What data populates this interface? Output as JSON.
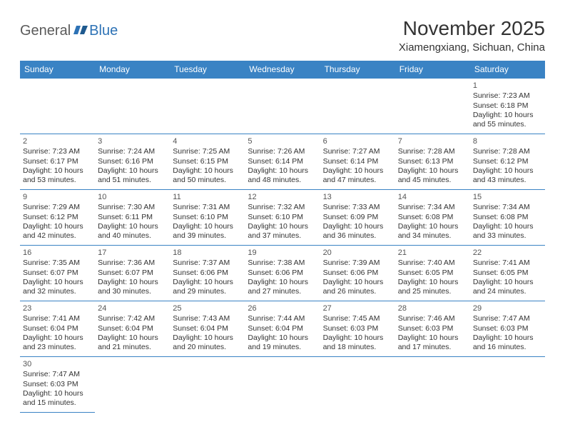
{
  "logo": {
    "part1": "General",
    "part2": "Blue"
  },
  "title": "November 2025",
  "location": "Xiamengxiang, Sichuan, China",
  "colors": {
    "header_bg": "#3a83c4",
    "header_text": "#ffffff",
    "border": "#3a83c4",
    "text": "#333333",
    "logo_gray": "#5a5a5a",
    "logo_blue": "#2d72b5"
  },
  "weekdays": [
    "Sunday",
    "Monday",
    "Tuesday",
    "Wednesday",
    "Thursday",
    "Friday",
    "Saturday"
  ],
  "weeks": [
    [
      {
        "blank": true
      },
      {
        "blank": true
      },
      {
        "blank": true
      },
      {
        "blank": true
      },
      {
        "blank": true
      },
      {
        "blank": true
      },
      {
        "day": "1",
        "sunrise": "Sunrise: 7:23 AM",
        "sunset": "Sunset: 6:18 PM",
        "daylight": "Daylight: 10 hours and 55 minutes."
      }
    ],
    [
      {
        "day": "2",
        "sunrise": "Sunrise: 7:23 AM",
        "sunset": "Sunset: 6:17 PM",
        "daylight": "Daylight: 10 hours and 53 minutes."
      },
      {
        "day": "3",
        "sunrise": "Sunrise: 7:24 AM",
        "sunset": "Sunset: 6:16 PM",
        "daylight": "Daylight: 10 hours and 51 minutes."
      },
      {
        "day": "4",
        "sunrise": "Sunrise: 7:25 AM",
        "sunset": "Sunset: 6:15 PM",
        "daylight": "Daylight: 10 hours and 50 minutes."
      },
      {
        "day": "5",
        "sunrise": "Sunrise: 7:26 AM",
        "sunset": "Sunset: 6:14 PM",
        "daylight": "Daylight: 10 hours and 48 minutes."
      },
      {
        "day": "6",
        "sunrise": "Sunrise: 7:27 AM",
        "sunset": "Sunset: 6:14 PM",
        "daylight": "Daylight: 10 hours and 47 minutes."
      },
      {
        "day": "7",
        "sunrise": "Sunrise: 7:28 AM",
        "sunset": "Sunset: 6:13 PM",
        "daylight": "Daylight: 10 hours and 45 minutes."
      },
      {
        "day": "8",
        "sunrise": "Sunrise: 7:28 AM",
        "sunset": "Sunset: 6:12 PM",
        "daylight": "Daylight: 10 hours and 43 minutes."
      }
    ],
    [
      {
        "day": "9",
        "sunrise": "Sunrise: 7:29 AM",
        "sunset": "Sunset: 6:12 PM",
        "daylight": "Daylight: 10 hours and 42 minutes."
      },
      {
        "day": "10",
        "sunrise": "Sunrise: 7:30 AM",
        "sunset": "Sunset: 6:11 PM",
        "daylight": "Daylight: 10 hours and 40 minutes."
      },
      {
        "day": "11",
        "sunrise": "Sunrise: 7:31 AM",
        "sunset": "Sunset: 6:10 PM",
        "daylight": "Daylight: 10 hours and 39 minutes."
      },
      {
        "day": "12",
        "sunrise": "Sunrise: 7:32 AM",
        "sunset": "Sunset: 6:10 PM",
        "daylight": "Daylight: 10 hours and 37 minutes."
      },
      {
        "day": "13",
        "sunrise": "Sunrise: 7:33 AM",
        "sunset": "Sunset: 6:09 PM",
        "daylight": "Daylight: 10 hours and 36 minutes."
      },
      {
        "day": "14",
        "sunrise": "Sunrise: 7:34 AM",
        "sunset": "Sunset: 6:08 PM",
        "daylight": "Daylight: 10 hours and 34 minutes."
      },
      {
        "day": "15",
        "sunrise": "Sunrise: 7:34 AM",
        "sunset": "Sunset: 6:08 PM",
        "daylight": "Daylight: 10 hours and 33 minutes."
      }
    ],
    [
      {
        "day": "16",
        "sunrise": "Sunrise: 7:35 AM",
        "sunset": "Sunset: 6:07 PM",
        "daylight": "Daylight: 10 hours and 32 minutes."
      },
      {
        "day": "17",
        "sunrise": "Sunrise: 7:36 AM",
        "sunset": "Sunset: 6:07 PM",
        "daylight": "Daylight: 10 hours and 30 minutes."
      },
      {
        "day": "18",
        "sunrise": "Sunrise: 7:37 AM",
        "sunset": "Sunset: 6:06 PM",
        "daylight": "Daylight: 10 hours and 29 minutes."
      },
      {
        "day": "19",
        "sunrise": "Sunrise: 7:38 AM",
        "sunset": "Sunset: 6:06 PM",
        "daylight": "Daylight: 10 hours and 27 minutes."
      },
      {
        "day": "20",
        "sunrise": "Sunrise: 7:39 AM",
        "sunset": "Sunset: 6:06 PM",
        "daylight": "Daylight: 10 hours and 26 minutes."
      },
      {
        "day": "21",
        "sunrise": "Sunrise: 7:40 AM",
        "sunset": "Sunset: 6:05 PM",
        "daylight": "Daylight: 10 hours and 25 minutes."
      },
      {
        "day": "22",
        "sunrise": "Sunrise: 7:41 AM",
        "sunset": "Sunset: 6:05 PM",
        "daylight": "Daylight: 10 hours and 24 minutes."
      }
    ],
    [
      {
        "day": "23",
        "sunrise": "Sunrise: 7:41 AM",
        "sunset": "Sunset: 6:04 PM",
        "daylight": "Daylight: 10 hours and 23 minutes."
      },
      {
        "day": "24",
        "sunrise": "Sunrise: 7:42 AM",
        "sunset": "Sunset: 6:04 PM",
        "daylight": "Daylight: 10 hours and 21 minutes."
      },
      {
        "day": "25",
        "sunrise": "Sunrise: 7:43 AM",
        "sunset": "Sunset: 6:04 PM",
        "daylight": "Daylight: 10 hours and 20 minutes."
      },
      {
        "day": "26",
        "sunrise": "Sunrise: 7:44 AM",
        "sunset": "Sunset: 6:04 PM",
        "daylight": "Daylight: 10 hours and 19 minutes."
      },
      {
        "day": "27",
        "sunrise": "Sunrise: 7:45 AM",
        "sunset": "Sunset: 6:03 PM",
        "daylight": "Daylight: 10 hours and 18 minutes."
      },
      {
        "day": "28",
        "sunrise": "Sunrise: 7:46 AM",
        "sunset": "Sunset: 6:03 PM",
        "daylight": "Daylight: 10 hours and 17 minutes."
      },
      {
        "day": "29",
        "sunrise": "Sunrise: 7:47 AM",
        "sunset": "Sunset: 6:03 PM",
        "daylight": "Daylight: 10 hours and 16 minutes."
      }
    ],
    [
      {
        "day": "30",
        "sunrise": "Sunrise: 7:47 AM",
        "sunset": "Sunset: 6:03 PM",
        "daylight": "Daylight: 10 hours and 15 minutes."
      },
      {
        "blank": true,
        "noborder": true
      },
      {
        "blank": true,
        "noborder": true
      },
      {
        "blank": true,
        "noborder": true
      },
      {
        "blank": true,
        "noborder": true
      },
      {
        "blank": true,
        "noborder": true
      },
      {
        "blank": true,
        "noborder": true
      }
    ]
  ]
}
